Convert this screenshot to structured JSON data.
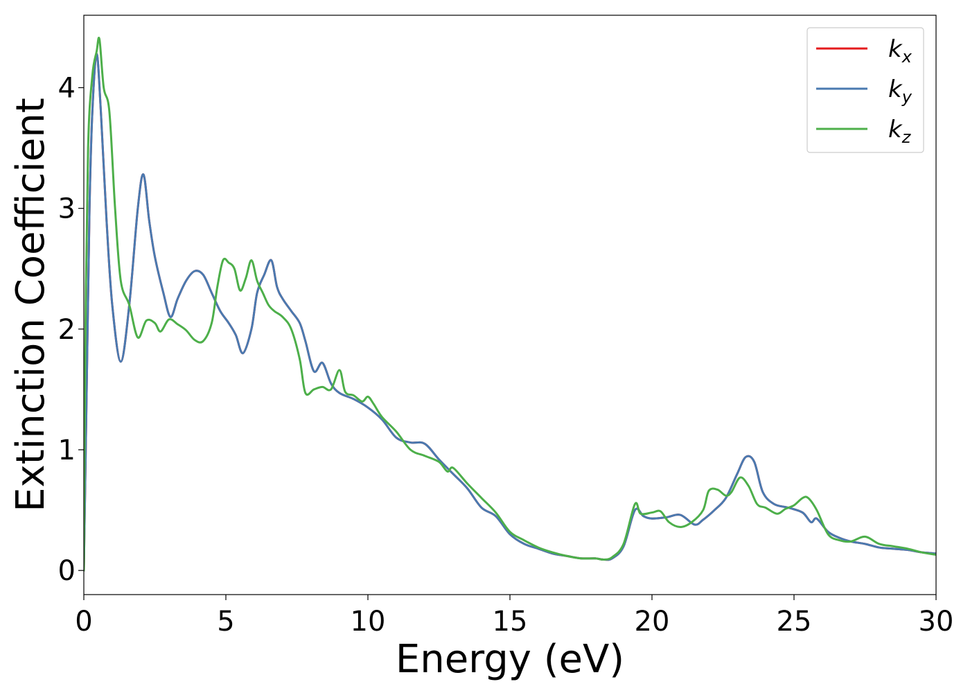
{
  "chart_data": {
    "type": "line",
    "title": "",
    "xlabel": "Energy (eV)",
    "ylabel": "Extinction Coefficient",
    "xlim": [
      0,
      30
    ],
    "ylim": [
      -0.2,
      4.6
    ],
    "xticks": [
      0,
      5,
      10,
      15,
      20,
      25,
      30
    ],
    "yticks": [
      0,
      1,
      2,
      3,
      4
    ],
    "grid": false,
    "legend_position": "top-right",
    "series": [
      {
        "name": "k_x",
        "label_main": "k",
        "label_sub": "x",
        "color": "#e41a1c",
        "x": [
          0,
          0.1,
          0.2,
          0.3,
          0.45,
          0.6,
          0.8,
          1.0,
          1.3,
          1.6,
          1.9,
          2.1,
          2.3,
          2.5,
          2.8,
          3.05,
          3.3,
          3.6,
          3.9,
          4.2,
          4.5,
          4.8,
          5.1,
          5.35,
          5.6,
          5.9,
          6.1,
          6.35,
          6.6,
          6.8,
          7.0,
          7.3,
          7.6,
          7.8,
          8.1,
          8.4,
          8.7,
          9.0,
          9.5,
          10.0,
          10.5,
          11.0,
          11.5,
          12.0,
          12.5,
          13.0,
          13.5,
          14.0,
          14.5,
          15.0,
          15.5,
          16.0,
          16.5,
          17.0,
          17.5,
          18.0,
          18.3,
          18.6,
          19.0,
          19.4,
          19.7,
          20.0,
          20.5,
          21.0,
          21.5,
          21.8,
          22.2,
          22.6,
          23.0,
          23.3,
          23.6,
          23.9,
          24.3,
          24.8,
          25.3,
          25.6,
          25.8,
          26.2,
          26.6,
          27.0,
          27.5,
          28.0,
          28.5,
          29.0,
          29.5,
          30.0
        ],
        "y": [
          0,
          1.5,
          3.0,
          3.8,
          4.28,
          3.8,
          2.9,
          2.2,
          1.73,
          2.2,
          3.0,
          3.28,
          2.9,
          2.6,
          2.3,
          2.1,
          2.25,
          2.4,
          2.48,
          2.45,
          2.3,
          2.15,
          2.05,
          1.95,
          1.8,
          2.0,
          2.3,
          2.45,
          2.57,
          2.35,
          2.25,
          2.15,
          2.05,
          1.9,
          1.65,
          1.72,
          1.55,
          1.47,
          1.42,
          1.35,
          1.25,
          1.1,
          1.06,
          1.05,
          0.92,
          0.8,
          0.68,
          0.52,
          0.45,
          0.3,
          0.22,
          0.18,
          0.14,
          0.12,
          0.1,
          0.1,
          0.09,
          0.1,
          0.2,
          0.5,
          0.45,
          0.43,
          0.44,
          0.46,
          0.38,
          0.42,
          0.5,
          0.6,
          0.8,
          0.94,
          0.9,
          0.65,
          0.55,
          0.52,
          0.48,
          0.4,
          0.43,
          0.32,
          0.27,
          0.24,
          0.22,
          0.19,
          0.18,
          0.17,
          0.15,
          0.14
        ]
      },
      {
        "name": "k_y",
        "label_main": "k",
        "label_sub": "y",
        "color": "#4a7ab0",
        "x": [
          0,
          0.1,
          0.2,
          0.3,
          0.45,
          0.6,
          0.8,
          1.0,
          1.3,
          1.6,
          1.9,
          2.1,
          2.3,
          2.5,
          2.8,
          3.05,
          3.3,
          3.6,
          3.9,
          4.2,
          4.5,
          4.8,
          5.1,
          5.35,
          5.6,
          5.9,
          6.1,
          6.35,
          6.6,
          6.8,
          7.0,
          7.3,
          7.6,
          7.8,
          8.1,
          8.4,
          8.7,
          9.0,
          9.5,
          10.0,
          10.5,
          11.0,
          11.5,
          12.0,
          12.5,
          13.0,
          13.5,
          14.0,
          14.5,
          15.0,
          15.5,
          16.0,
          16.5,
          17.0,
          17.5,
          18.0,
          18.3,
          18.6,
          19.0,
          19.4,
          19.7,
          20.0,
          20.5,
          21.0,
          21.5,
          21.8,
          22.2,
          22.6,
          23.0,
          23.3,
          23.6,
          23.9,
          24.3,
          24.8,
          25.3,
          25.6,
          25.8,
          26.2,
          26.6,
          27.0,
          27.5,
          28.0,
          28.5,
          29.0,
          29.5,
          30.0
        ],
        "y": [
          0,
          1.5,
          3.0,
          3.8,
          4.28,
          3.8,
          2.9,
          2.2,
          1.73,
          2.2,
          3.0,
          3.28,
          2.9,
          2.6,
          2.3,
          2.1,
          2.25,
          2.4,
          2.48,
          2.45,
          2.3,
          2.15,
          2.05,
          1.95,
          1.8,
          2.0,
          2.3,
          2.45,
          2.57,
          2.35,
          2.25,
          2.15,
          2.05,
          1.9,
          1.65,
          1.72,
          1.55,
          1.47,
          1.42,
          1.35,
          1.25,
          1.1,
          1.06,
          1.05,
          0.92,
          0.8,
          0.68,
          0.52,
          0.45,
          0.3,
          0.22,
          0.18,
          0.14,
          0.12,
          0.1,
          0.1,
          0.09,
          0.1,
          0.2,
          0.5,
          0.45,
          0.43,
          0.44,
          0.46,
          0.38,
          0.42,
          0.5,
          0.6,
          0.8,
          0.94,
          0.9,
          0.65,
          0.55,
          0.52,
          0.48,
          0.4,
          0.43,
          0.32,
          0.27,
          0.24,
          0.22,
          0.19,
          0.18,
          0.17,
          0.15,
          0.14
        ]
      },
      {
        "name": "k_z",
        "label_main": "k",
        "label_sub": "z",
        "color": "#4daf4a",
        "x": [
          0,
          0.05,
          0.15,
          0.3,
          0.45,
          0.55,
          0.7,
          0.9,
          1.1,
          1.3,
          1.6,
          1.9,
          2.2,
          2.5,
          2.7,
          3.0,
          3.3,
          3.6,
          3.9,
          4.2,
          4.5,
          4.7,
          4.9,
          5.1,
          5.3,
          5.5,
          5.7,
          5.9,
          6.1,
          6.3,
          6.5,
          6.7,
          7.0,
          7.3,
          7.6,
          7.8,
          8.1,
          8.4,
          8.7,
          9.0,
          9.2,
          9.5,
          9.8,
          10.0,
          10.2,
          10.5,
          11.0,
          11.5,
          12.0,
          12.5,
          12.8,
          13.0,
          13.5,
          14.0,
          14.5,
          15.0,
          15.5,
          16.0,
          16.5,
          17.0,
          17.5,
          18.0,
          18.3,
          18.6,
          19.0,
          19.4,
          19.6,
          20.0,
          20.3,
          20.6,
          21.0,
          21.4,
          21.8,
          22.0,
          22.3,
          22.6,
          22.8,
          23.1,
          23.4,
          23.7,
          24.0,
          24.4,
          24.7,
          25.0,
          25.3,
          25.5,
          25.8,
          26.2,
          26.6,
          27.0,
          27.5,
          28.0,
          28.5,
          29.0,
          29.5,
          30.0
        ],
        "y": [
          0,
          1.8,
          3.5,
          4.1,
          4.3,
          4.4,
          4.0,
          3.8,
          3.0,
          2.4,
          2.2,
          1.93,
          2.07,
          2.05,
          1.98,
          2.08,
          2.04,
          1.99,
          1.91,
          1.9,
          2.05,
          2.35,
          2.57,
          2.55,
          2.5,
          2.32,
          2.42,
          2.57,
          2.4,
          2.3,
          2.2,
          2.15,
          2.1,
          2.0,
          1.75,
          1.47,
          1.5,
          1.52,
          1.5,
          1.66,
          1.48,
          1.45,
          1.4,
          1.44,
          1.38,
          1.27,
          1.15,
          1.0,
          0.95,
          0.9,
          0.82,
          0.85,
          0.72,
          0.6,
          0.48,
          0.32,
          0.25,
          0.19,
          0.15,
          0.12,
          0.1,
          0.1,
          0.09,
          0.11,
          0.22,
          0.55,
          0.47,
          0.48,
          0.49,
          0.4,
          0.36,
          0.4,
          0.5,
          0.66,
          0.67,
          0.62,
          0.65,
          0.77,
          0.7,
          0.55,
          0.52,
          0.47,
          0.51,
          0.54,
          0.6,
          0.6,
          0.5,
          0.3,
          0.25,
          0.24,
          0.28,
          0.22,
          0.2,
          0.18,
          0.15,
          0.13
        ]
      }
    ]
  }
}
